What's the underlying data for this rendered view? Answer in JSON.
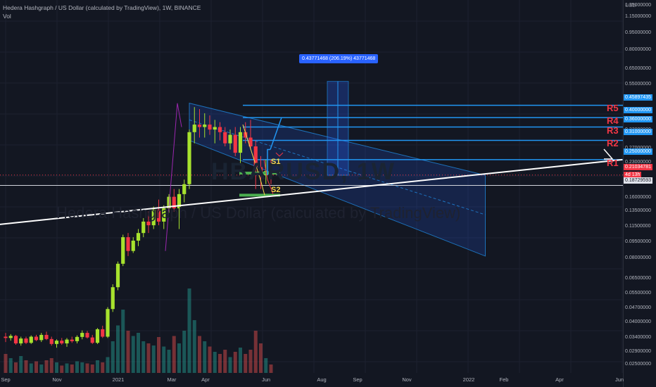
{
  "header": {
    "title": "Hedera Hashgraph / US Dollar (calculated by TradingView), 1W, BINANCE",
    "indicator": "Vol",
    "watermark": "Hedera Hashgraph / US Dollar (calculated by TradingView)",
    "watermark_symbol": "HBARUSD, 1W"
  },
  "axis": {
    "currency": "USD",
    "y_ticks": [
      "1.35000000",
      "1.15000000",
      "0.95000000",
      "0.80000000",
      "0.65000000",
      "0.55000000",
      "0.33000000",
      "0.27000000",
      "0.23000000",
      "0.16000000",
      "0.13500000",
      "0.11500000",
      "0.09500000",
      "0.08000000",
      "0.06500000",
      "0.05500000",
      "0.04700000",
      "0.04000000",
      "0.03400000",
      "0.02900000",
      "0.02500000"
    ],
    "x_ticks": [
      "Sep",
      "Nov",
      "2021",
      "Mar",
      "Apr",
      "Jun",
      "Aug",
      "Sep",
      "Nov",
      "2022",
      "Feb",
      "Apr",
      "Jun"
    ],
    "price_labels": [
      {
        "text": "0.45897435",
        "style": "blue"
      },
      {
        "text": "0.40000000",
        "style": "blue"
      },
      {
        "text": "0.36000000",
        "style": "blue"
      },
      {
        "text": "0.31000000",
        "style": "blue"
      },
      {
        "text": "0.25000000",
        "style": "blue"
      },
      {
        "text": "0.21034781",
        "style": "red"
      },
      {
        "text": "4d 13h",
        "style": "red"
      },
      {
        "text": "0.18729593",
        "style": "white"
      }
    ]
  },
  "annotations": {
    "resistance": [
      "R5",
      "R4",
      "R3",
      "R2",
      "R1"
    ],
    "support": [
      "S1",
      "S2"
    ],
    "projection_label": "0.43771468 (206.19%) 43771468"
  },
  "colors": {
    "background": "#131722",
    "up": "#a7e22e",
    "down": "#f23645",
    "level_line": "#2196f3",
    "trend_line": "#ffffff",
    "channel_fill": "#2962ff",
    "support_line": "#4caf50"
  },
  "chart_data": {
    "type": "candlestick",
    "title": "Hedera Hashgraph / US Dollar (calculated by TradingView), 1W, BINANCE",
    "y_scale": "log",
    "ylim": [
      0.023,
      1.4
    ],
    "levels": [
      0.45897435,
      0.4,
      0.36,
      0.31,
      0.25,
      0.18729593
    ],
    "last_price": 0.21034781,
    "ohlc": [
      [
        0.0345,
        0.036,
        0.0325,
        0.034
      ],
      [
        0.034,
        0.0355,
        0.033,
        0.0348
      ],
      [
        0.0348,
        0.0352,
        0.0315,
        0.032
      ],
      [
        0.032,
        0.0345,
        0.0312,
        0.0338
      ],
      [
        0.0338,
        0.0345,
        0.0318,
        0.0322
      ],
      [
        0.0322,
        0.035,
        0.0318,
        0.0345
      ],
      [
        0.0345,
        0.0352,
        0.0328,
        0.0332
      ],
      [
        0.0332,
        0.036,
        0.0325,
        0.0352
      ],
      [
        0.0352,
        0.0365,
        0.0332,
        0.0336
      ],
      [
        0.0336,
        0.0345,
        0.0312,
        0.0318
      ],
      [
        0.0318,
        0.0335,
        0.0305,
        0.033
      ],
      [
        0.033,
        0.034,
        0.0315,
        0.032
      ],
      [
        0.032,
        0.034,
        0.0308,
        0.0334
      ],
      [
        0.0334,
        0.0345,
        0.0322,
        0.0328
      ],
      [
        0.0328,
        0.035,
        0.032,
        0.0344
      ],
      [
        0.0344,
        0.037,
        0.0335,
        0.036
      ],
      [
        0.036,
        0.0368,
        0.0338,
        0.0342
      ],
      [
        0.0342,
        0.0352,
        0.0318,
        0.0322
      ],
      [
        0.0322,
        0.038,
        0.0318,
        0.0375
      ],
      [
        0.0375,
        0.039,
        0.034,
        0.0345
      ],
      [
        0.0345,
        0.048,
        0.034,
        0.047
      ],
      [
        0.047,
        0.062,
        0.0455,
        0.06
      ],
      [
        0.06,
        0.08,
        0.058,
        0.078
      ],
      [
        0.078,
        0.108,
        0.076,
        0.105
      ],
      [
        0.105,
        0.11,
        0.085,
        0.09
      ],
      [
        0.09,
        0.105,
        0.088,
        0.101
      ],
      [
        0.101,
        0.115,
        0.095,
        0.11
      ],
      [
        0.11,
        0.13,
        0.105,
        0.125
      ],
      [
        0.125,
        0.14,
        0.11,
        0.12
      ],
      [
        0.12,
        0.148,
        0.115,
        0.143
      ],
      [
        0.143,
        0.16,
        0.12,
        0.125
      ],
      [
        0.125,
        0.15,
        0.115,
        0.145
      ],
      [
        0.145,
        0.17,
        0.138,
        0.165
      ],
      [
        0.165,
        0.18,
        0.14,
        0.145
      ],
      [
        0.145,
        0.18,
        0.115,
        0.17
      ],
      [
        0.17,
        0.2,
        0.155,
        0.19
      ],
      [
        0.19,
        0.35,
        0.18,
        0.34
      ],
      [
        0.34,
        0.45,
        0.3,
        0.37
      ],
      [
        0.37,
        0.44,
        0.32,
        0.36
      ],
      [
        0.36,
        0.42,
        0.32,
        0.37
      ],
      [
        0.37,
        0.41,
        0.33,
        0.35
      ],
      [
        0.35,
        0.39,
        0.3,
        0.36
      ],
      [
        0.36,
        0.38,
        0.31,
        0.34
      ],
      [
        0.34,
        0.36,
        0.29,
        0.3
      ],
      [
        0.3,
        0.35,
        0.28,
        0.33
      ],
      [
        0.33,
        0.36,
        0.26,
        0.27
      ],
      [
        0.27,
        0.36,
        0.24,
        0.34
      ],
      [
        0.34,
        0.38,
        0.3,
        0.32
      ],
      [
        0.32,
        0.39,
        0.28,
        0.29
      ],
      [
        0.29,
        0.31,
        0.18,
        0.23
      ],
      [
        0.23,
        0.26,
        0.18,
        0.21
      ],
      [
        0.21,
        0.25,
        0.19,
        0.22
      ],
      [
        0.22,
        0.25,
        0.19,
        0.2103
      ]
    ],
    "volume": [
      18,
      14,
      10,
      16,
      12,
      9,
      11,
      8,
      12,
      14,
      10,
      7,
      9,
      8,
      11,
      10,
      9,
      8,
      12,
      10,
      15,
      30,
      45,
      60,
      40,
      35,
      38,
      30,
      28,
      26,
      34,
      25,
      22,
      35,
      28,
      40,
      80,
      50,
      35,
      30,
      25,
      20,
      18,
      22,
      15,
      20,
      24,
      18,
      22,
      40,
      28,
      14,
      8
    ],
    "trend_line": {
      "from": {
        "bar": -10,
        "price": 0.115
      },
      "to": {
        "bar": 145,
        "price": 0.25
      }
    },
    "channel": {
      "upper": {
        "from": [
          36,
          0.47
        ],
        "to": [
          94,
          0.21
        ]
      },
      "lower": {
        "from": [
          36,
          0.31
        ],
        "to": [
          94,
          0.085
        ]
      }
    }
  }
}
